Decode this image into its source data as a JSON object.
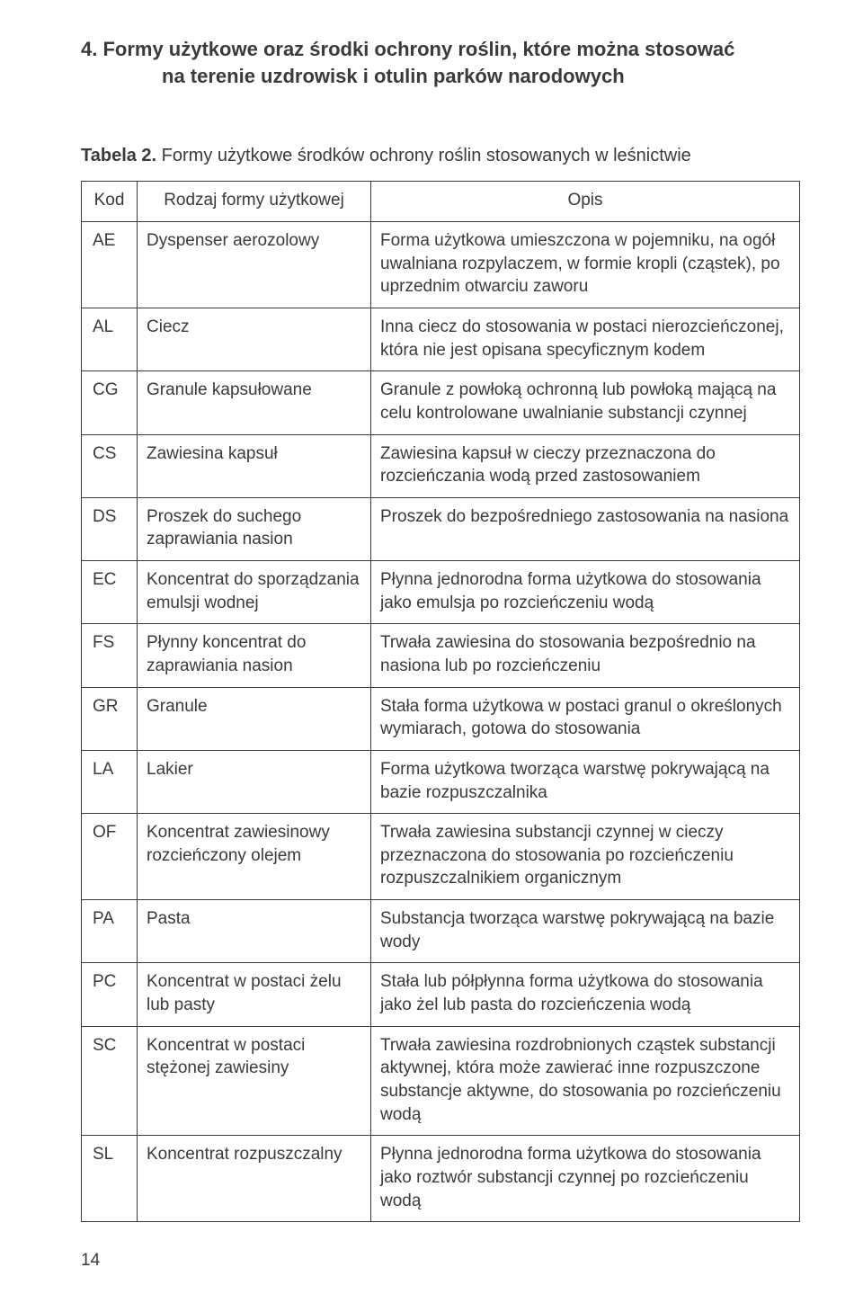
{
  "heading": {
    "line1": "4. Formy użytkowe oraz środki ochrony roślin, które można stosować",
    "line2": "na terenie uzdrowisk i otulin parków narodowych"
  },
  "table": {
    "caption_prefix": "Tabela 2.",
    "caption_rest": " Formy użytkowe środków ochrony roślin stosowanych w leśnictwie",
    "columns": {
      "kod": "Kod",
      "rodzaj": "Rodzaj formy użytkowej",
      "opis": "Opis"
    },
    "rows": [
      {
        "kod": "AE",
        "rodzaj": "Dyspenser aerozolowy",
        "opis": "Forma użytkowa umieszczona w pojemniku, na ogół uwalniana rozpylaczem, w formie kropli (cząstek), po uprzednim otwarciu zaworu"
      },
      {
        "kod": "AL",
        "rodzaj": "Ciecz",
        "opis": "Inna ciecz do stosowania w postaci nierozcieńczonej, która nie jest opisana specyficznym kodem"
      },
      {
        "kod": "CG",
        "rodzaj": "Granule kapsułowane",
        "opis": "Granule z powłoką ochronną lub powłoką mającą na celu kontrolowane uwalnianie substancji czynnej"
      },
      {
        "kod": "CS",
        "rodzaj": "Zawiesina kapsuł",
        "opis": "Zawiesina kapsuł w cieczy przeznaczona do rozcieńczania wodą przed zastosowaniem"
      },
      {
        "kod": "DS",
        "rodzaj": "Proszek do suchego zaprawiania nasion",
        "opis": "Proszek do bezpośredniego zastosowania na nasiona"
      },
      {
        "kod": "EC",
        "rodzaj": "Koncentrat do sporzą­dzania emulsji wodnej",
        "opis": "Płynna jednorodna forma użytkowa do stosowania jako emulsja po rozcieńczeniu wodą"
      },
      {
        "kod": "FS",
        "rodzaj": "Płynny koncentrat do zaprawiania nasion",
        "opis": "Trwała zawiesina do stosowania bezpośrednio na nasiona lub po rozcieńczeniu"
      },
      {
        "kod": "GR",
        "rodzaj": "Granule",
        "opis": "Stała forma użytkowa w postaci granul o określonych wymiarach, gotowa do stosowania"
      },
      {
        "kod": "LA",
        "rodzaj": "Lakier",
        "opis": "Forma użytkowa tworząca warstwę pokrywającą na bazie rozpuszczalnika"
      },
      {
        "kod": "OF",
        "rodzaj": "Koncentrat zawiesinowy rozcieńczony olejem",
        "opis": "Trwała zawiesina substancji czynnej w cieczy przeznaczona do stosowania po rozcieńczeniu rozpuszczalnikiem organicznym"
      },
      {
        "kod": "PA",
        "rodzaj": "Pasta",
        "opis": "Substancja tworząca warstwę pokrywającą na bazie wody"
      },
      {
        "kod": "PC",
        "rodzaj": "Koncentrat w postaci żelu lub pasty",
        "opis": "Stała lub półpłynna  forma użytkowa do stosowania jako żel lub pasta do rozcieńczenia wodą"
      },
      {
        "kod": "SC",
        "rodzaj": "Koncentrat w postaci stężonej zawiesiny",
        "opis": "Trwała zawiesina rozdrobnionych cząstek substancji aktywnej, która może zawierać inne rozpuszczone substancje aktywne, do stosowania po rozcieńczeniu wodą"
      },
      {
        "kod": "SL",
        "rodzaj": "Koncentrat rozpuszczalny",
        "opis": "Płynna jednorodna forma użytkowa do stosowania jako roztwór substancji czynnej po rozcieńczeniu wodą"
      }
    ]
  },
  "page_number": "14",
  "colors": {
    "text": "#3a3a3a",
    "border": "#3a3a3a",
    "background": "#ffffff"
  }
}
